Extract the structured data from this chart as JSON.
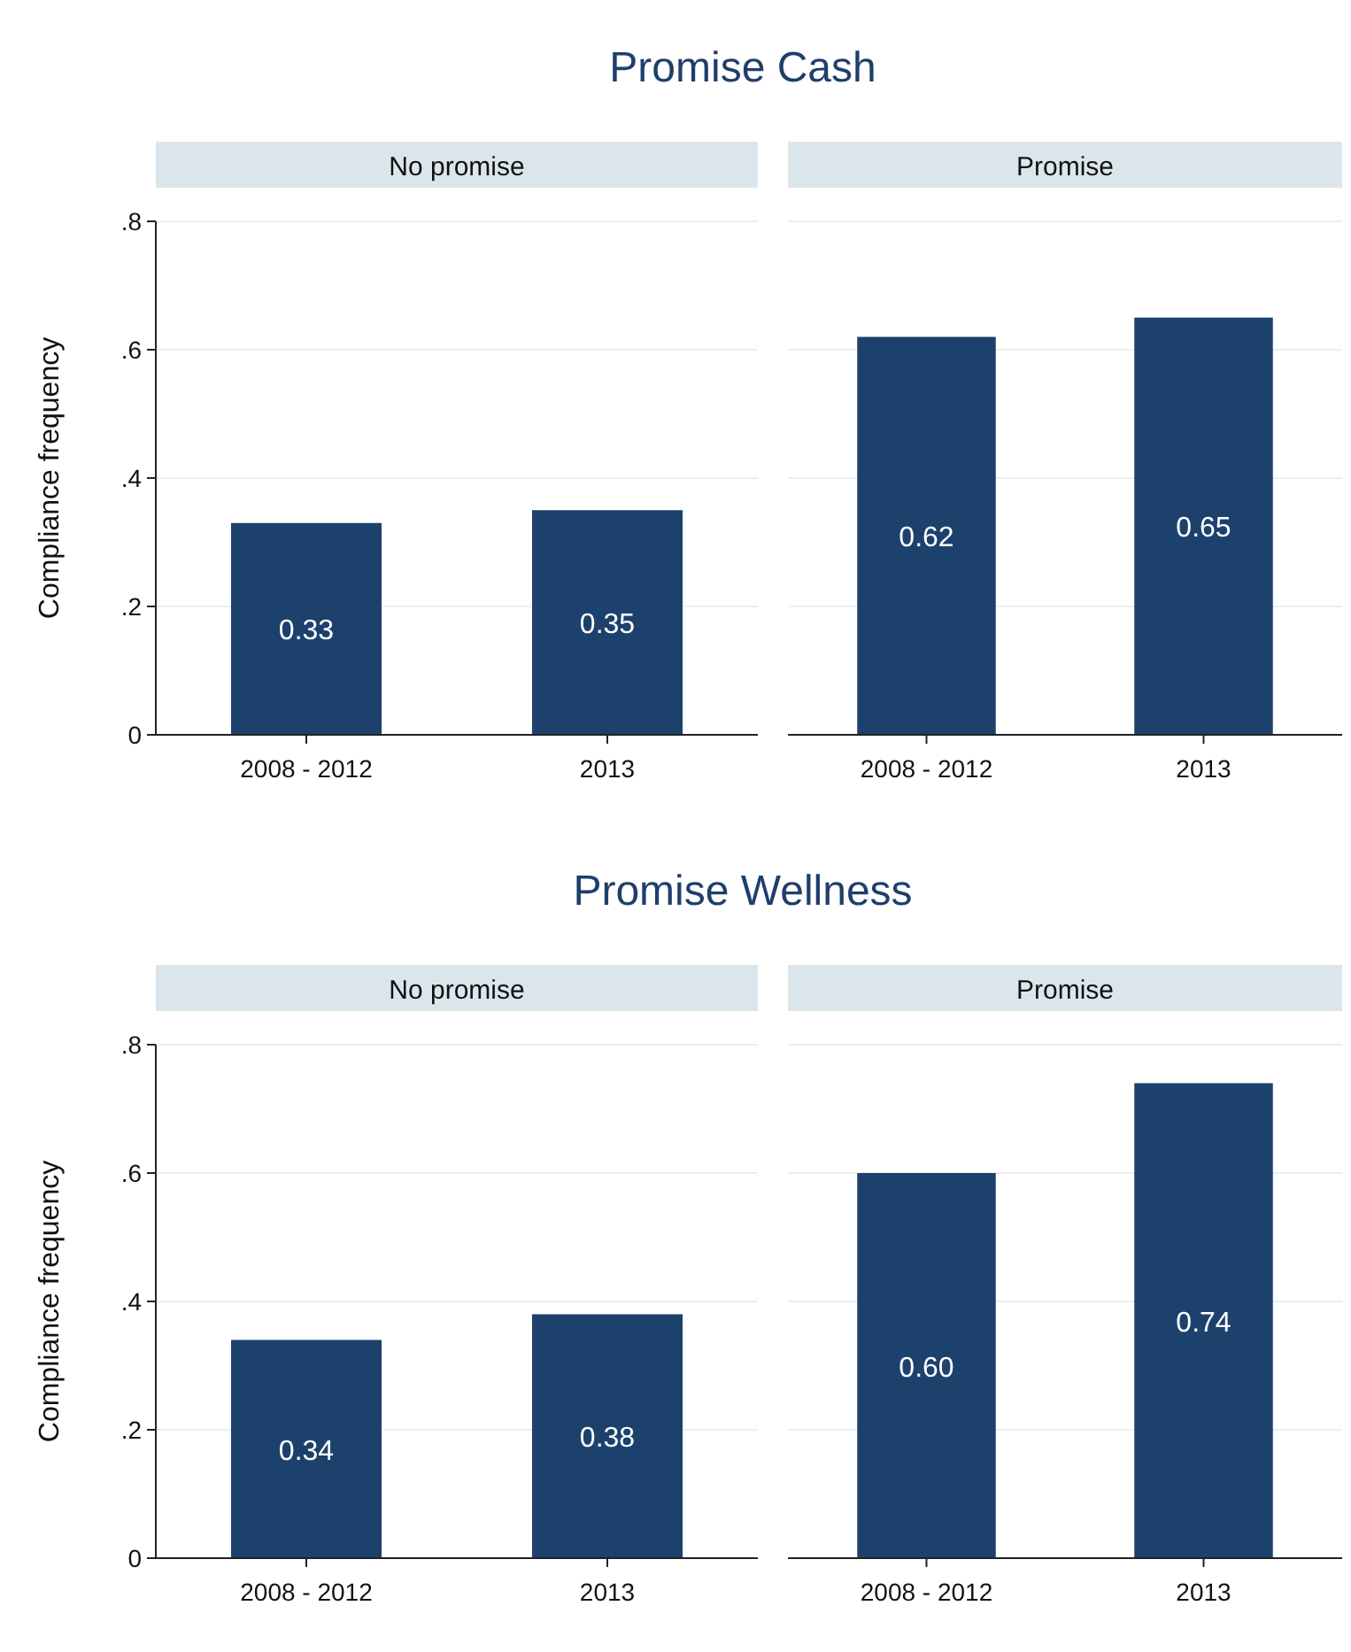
{
  "chart_data": [
    {
      "type": "bar",
      "annotations": [
        "Promise Cash"
      ],
      "title": "No promise",
      "ylabel": "Compliance frequency",
      "categories": [
        "2008 - 2012",
        "2013"
      ],
      "values": [
        0.33,
        0.35
      ],
      "value_labels": [
        "0.33",
        "0.35"
      ],
      "color": "#1c416c",
      "ylim": [
        0,
        0.8
      ],
      "yticks": [
        0,
        {
          "value": 0.2,
          "label": ".2"
        },
        {
          "value": 0.4,
          "label": ".4"
        },
        {
          "value": 0.6,
          "label": ".6"
        },
        {
          "value": 0.8,
          "label": ".8"
        }
      ],
      "grid": "y"
    },
    {
      "type": "bar",
      "title": "Promise",
      "categories": [
        "2008 - 2012",
        "2013"
      ],
      "values": [
        0.62,
        0.65
      ],
      "value_labels": [
        "0.62",
        "0.65"
      ],
      "color": "#1c416c",
      "ylim": [
        0,
        0.8
      ],
      "yticks": [
        0,
        0.2,
        0.4,
        0.6,
        0.8
      ],
      "grid": "y",
      "tick_labels": "x"
    },
    {
      "type": "bar",
      "annotations": [
        "Promise Wellness"
      ],
      "title": "No promise",
      "ylabel": "Compliance frequency",
      "categories": [
        "2008 - 2012",
        "2013"
      ],
      "values": [
        0.34,
        0.38
      ],
      "value_labels": [
        "0.34",
        "0.38"
      ],
      "color": "#1c416c",
      "ylim": [
        0,
        0.8
      ],
      "yticks": [
        0,
        {
          "value": 0.2,
          "label": ".2"
        },
        {
          "value": 0.4,
          "label": ".4"
        },
        {
          "value": 0.6,
          "label": ".6"
        },
        {
          "value": 0.8,
          "label": ".8"
        }
      ],
      "grid": "y"
    },
    {
      "type": "bar",
      "title": "Promise",
      "categories": [
        "2008 - 2012",
        "2013"
      ],
      "values": [
        0.6,
        0.74
      ],
      "value_labels": [
        "0.60",
        "0.74"
      ],
      "color": "#1c416c",
      "ylim": [
        0,
        0.8
      ],
      "yticks": [
        0,
        0.2,
        0.4,
        0.6,
        0.8
      ],
      "grid": "y",
      "tick_labels": "x"
    }
  ]
}
